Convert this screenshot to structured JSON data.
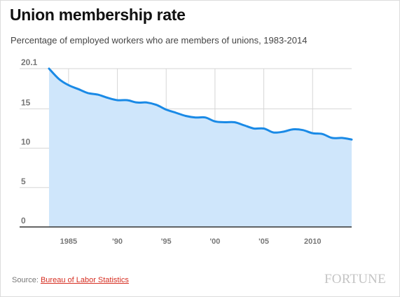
{
  "chart_data": {
    "type": "area",
    "title": "Union membership rate",
    "subtitle": "Percentage of employed workers who are members of unions, 1983-2014",
    "xlabel": "",
    "ylabel": "",
    "xlim": [
      1983,
      2014
    ],
    "ylim": [
      0,
      20.1
    ],
    "yticks": [
      {
        "value": 20.1,
        "label": "20.1"
      },
      {
        "value": 15,
        "label": "15"
      },
      {
        "value": 10,
        "label": "10"
      },
      {
        "value": 5,
        "label": "5"
      },
      {
        "value": 0,
        "label": "0"
      }
    ],
    "xticks": [
      {
        "value": 1985,
        "label": "1985"
      },
      {
        "value": 1990,
        "label": "'90"
      },
      {
        "value": 1995,
        "label": "'95"
      },
      {
        "value": 2000,
        "label": "'00"
      },
      {
        "value": 2005,
        "label": "'05"
      },
      {
        "value": 2010,
        "label": "2010"
      }
    ],
    "grid": true,
    "x": [
      1983,
      1984,
      1985,
      1986,
      1987,
      1988,
      1989,
      1990,
      1991,
      1992,
      1993,
      1994,
      1995,
      1996,
      1997,
      1998,
      1999,
      2000,
      2001,
      2002,
      2003,
      2004,
      2005,
      2006,
      2007,
      2008,
      2009,
      2010,
      2011,
      2012,
      2013,
      2014
    ],
    "series": [
      {
        "values": [
          20.1,
          18.8,
          18.0,
          17.5,
          17.0,
          16.8,
          16.4,
          16.1,
          16.1,
          15.8,
          15.8,
          15.5,
          14.9,
          14.5,
          14.1,
          13.9,
          13.9,
          13.4,
          13.3,
          13.3,
          12.9,
          12.5,
          12.5,
          12.0,
          12.1,
          12.4,
          12.3,
          11.9,
          11.8,
          11.3,
          11.3,
          11.1
        ],
        "color": "#1a8ae6",
        "fill": "#cfe6fb"
      }
    ]
  },
  "source": {
    "prefix": "Source: ",
    "link": "Bureau of Labor Statistics"
  },
  "logo_text": "FORTUNE"
}
